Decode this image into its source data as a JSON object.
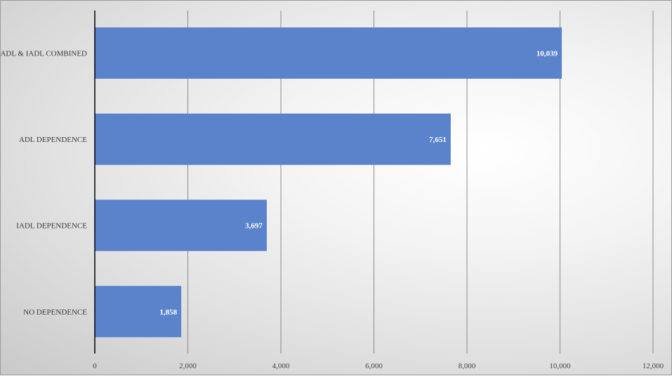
{
  "chart_data": {
    "type": "bar",
    "orientation": "horizontal",
    "categories": [
      "ADL & IADL COMBINED",
      "ADL DEPENDENCE",
      "IADL DEPENDENCE",
      "NO DEPENDENCE"
    ],
    "values": [
      10039,
      7651,
      3697,
      1858
    ],
    "value_labels": [
      "10,039",
      "7,651",
      "3,697",
      "1,858"
    ],
    "xlim": [
      0,
      12000
    ],
    "xticks": [
      0,
      2000,
      4000,
      6000,
      8000,
      10000,
      12000
    ],
    "xtick_labels": [
      "0",
      "2,000",
      "4,000",
      "6,000",
      "8,000",
      "10,000",
      "12,000"
    ],
    "title": "",
    "xlabel": "",
    "ylabel": "",
    "grid": "vertical",
    "legend": "none",
    "colors": {
      "bar": "#5a83cb",
      "gridline": "#8a8a8a",
      "axis": "#000000",
      "data_label": "#ffffff"
    }
  }
}
